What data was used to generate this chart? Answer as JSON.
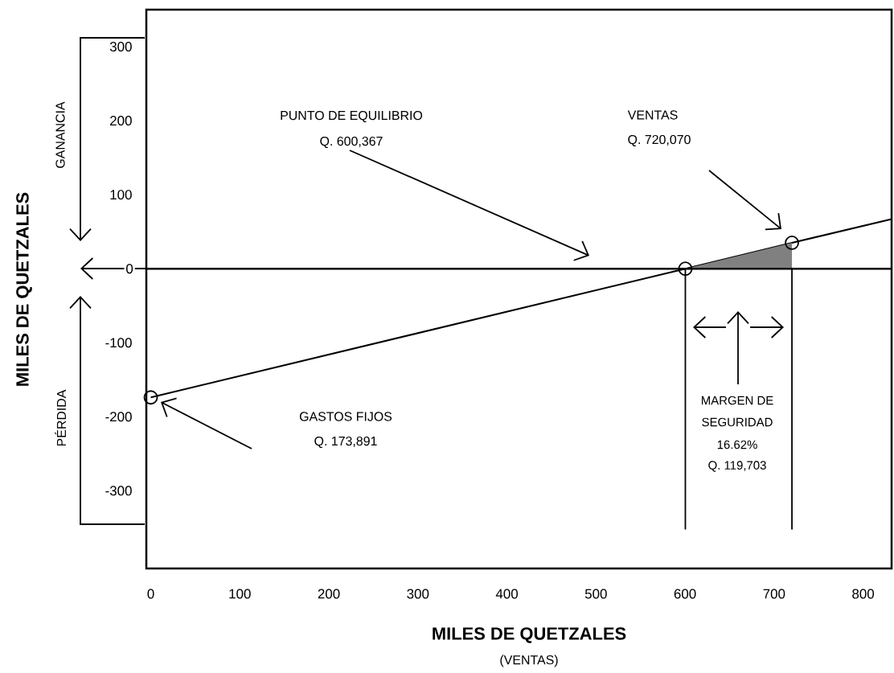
{
  "chart_data": {
    "type": "line",
    "series": [
      {
        "color": "#000000",
        "x": [
          0,
          600.367,
          720.07,
          832
        ],
        "values": [
          -173.891,
          0,
          35,
          67
        ]
      },
      {
        "type": "area",
        "color": "#808080",
        "x": [
          600.367,
          720.07
        ],
        "values": [
          0,
          35
        ]
      },
      {
        "type": "scatter",
        "color": "#000000",
        "marker": "circle",
        "x": [
          0,
          600.367,
          720.07
        ],
        "values": [
          -173.891,
          0,
          35
        ]
      }
    ],
    "xlim": [
      -5,
      832
    ],
    "ylim": [
      -405,
      350
    ],
    "xticks": [
      0,
      100,
      200,
      300,
      400,
      500,
      600,
      700,
      800
    ],
    "yticks": [
      -300,
      -200,
      -100,
      0,
      100,
      200,
      300
    ],
    "xlabel": "MILES DE QUETZALES",
    "ylabel": "MILES DE QUETZALES",
    "ref_lines": [
      {
        "axis": "y",
        "value": 0
      },
      {
        "axis": "x",
        "value": 600.367
      },
      {
        "axis": "x",
        "value": 720.07
      }
    ],
    "annotations": [
      "PUNTO DE EQUILIBRIO",
      "Q. 600,367",
      "VENTAS",
      "Q. 720,070",
      "GASTOS FIJOS",
      "Q. 173,891",
      "MARGEN DE",
      "SEGURIDAD",
      "16.62%",
      "Q. 119,703",
      "GANANCIA",
      "PÉRDIDA",
      "(VENTAS)"
    ],
    "grid": false
  }
}
